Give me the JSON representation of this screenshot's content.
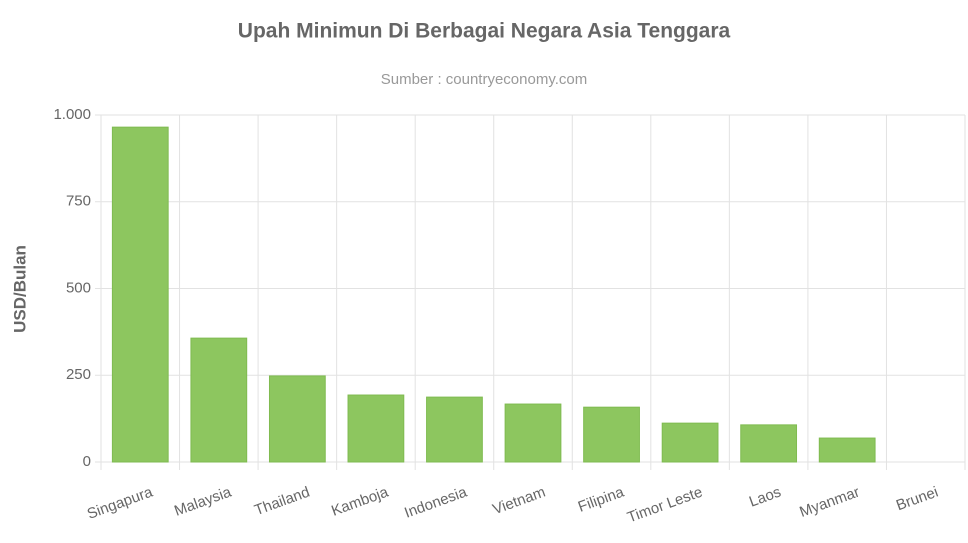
{
  "chart_data": {
    "type": "bar",
    "title": "Upah Minimun Di Berbagai Negara Asia Tenggara",
    "subtitle": "Sumber : countryeconomy.com",
    "y_label": "USD/Bulan",
    "categories": [
      "Singapura",
      "Malaysia",
      "Thailand",
      "Kamboja",
      "Indonesia",
      "Vietnam",
      "Filipina",
      "Timor Leste",
      "Laos",
      "Myanmar",
      "Brunei"
    ],
    "values": [
      965,
      357,
      248,
      193,
      187,
      167,
      158,
      112,
      107,
      69,
      0
    ],
    "color": "#8dc65f",
    "ylim": [
      0,
      1000
    ],
    "yticks": [
      0,
      250,
      500,
      750,
      {
        "value": 1000,
        "label": "1.000"
      }
    ],
    "grid": true
  }
}
